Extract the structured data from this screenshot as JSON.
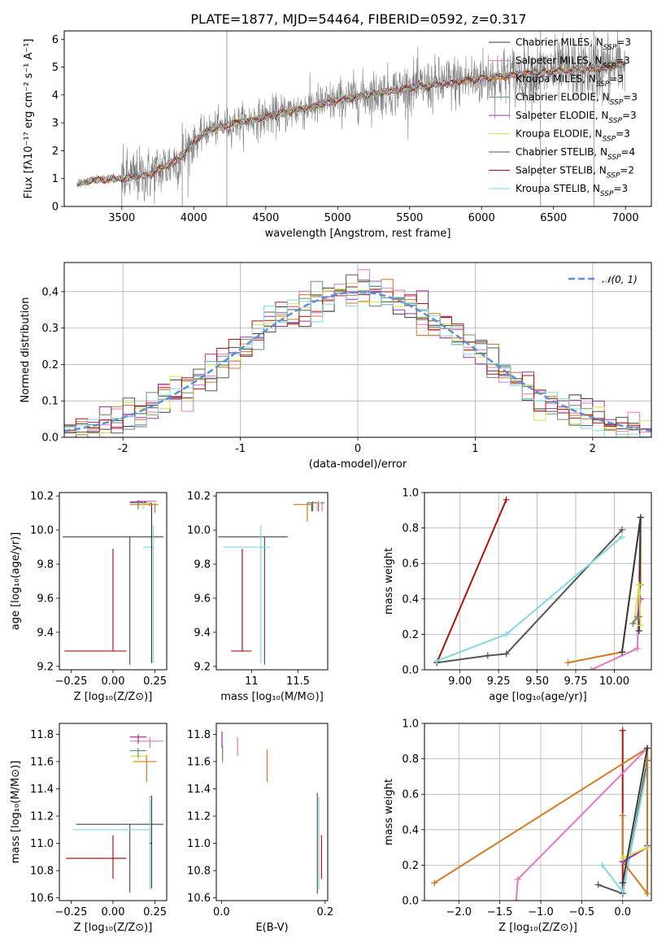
{
  "figure": {
    "title": "PLATE=1877, MJD=54464, FIBERID=0592, z=0.317"
  },
  "models": [
    {
      "name": "Chabrier MILES",
      "color": "#3a3a3a",
      "nssp": "3"
    },
    {
      "name": "Salpeter MILES",
      "color": "#e377c2",
      "nssp": "3"
    },
    {
      "name": "Kroupa MILES",
      "color": "#d2791f",
      "nssp": "3"
    },
    {
      "name": "Chabrier ELODIE",
      "color": "#6c8f6c",
      "nssp": "3"
    },
    {
      "name": "Salpeter ELODIE",
      "color": "#9b30b0",
      "nssp": "3"
    },
    {
      "name": "Kroupa ELODIE",
      "color": "#d9e04a",
      "nssp": "3"
    },
    {
      "name": "Chabrier STELIB",
      "color": "#555555",
      "nssp": "4"
    },
    {
      "name": "Salpeter STELIB",
      "color": "#b01010",
      "nssp": "2"
    },
    {
      "name": "Kroupa STELIB",
      "color": "#7fd8e0",
      "nssp": "3"
    }
  ],
  "chart_data": [
    {
      "id": "spectrum",
      "type": "line",
      "xlabel": "wavelength [Angstrom, rest frame]",
      "ylabel": "Flux [fλ10⁻¹⁷ erg cm⁻² s⁻¹ A⁻¹]",
      "xlim": [
        3100,
        7180
      ],
      "ylim": [
        0,
        6.3
      ],
      "xticks": [
        3500,
        4000,
        4500,
        5000,
        5500,
        6000,
        6500,
        7000
      ],
      "yticks": [
        0,
        1,
        2,
        3,
        4,
        5,
        6
      ],
      "data_range": [
        3190,
        7000
      ],
      "continuum": {
        "x": [
          3200,
          3300,
          3500,
          3700,
          3900,
          4000,
          4100,
          4300,
          4500,
          4700,
          5000,
          5200,
          5500,
          5800,
          6000,
          6200,
          6500,
          6800,
          7000
        ],
        "y": [
          0.8,
          0.95,
          1.0,
          1.15,
          1.7,
          2.3,
          2.75,
          3.0,
          3.2,
          3.45,
          3.8,
          4.0,
          4.25,
          4.45,
          4.6,
          4.7,
          4.85,
          4.95,
          5.1
        ]
      },
      "noise_spikes": [
        [
          4230,
          0,
          6.3
        ],
        [
          3920,
          0,
          3.0
        ],
        [
          6410,
          0,
          6.3
        ],
        [
          6780,
          0,
          6.3
        ],
        [
          3500,
          0,
          1.5
        ]
      ]
    },
    {
      "id": "residual-histogram",
      "type": "histogram",
      "xlabel": "(data-model)/error",
      "ylabel": "Normed distribution",
      "xlim": [
        -2.5,
        2.5
      ],
      "ylim": [
        0,
        0.48
      ],
      "xticks": [
        -2,
        -1,
        0,
        1,
        2
      ],
      "yticks": [
        0.0,
        0.1,
        0.2,
        0.3,
        0.4
      ],
      "bin_width": 0.1,
      "reference": {
        "name": "𝒩(0, 1)",
        "color": "#5b8fd9",
        "mean": 0,
        "sigma": 1
      }
    },
    {
      "id": "age-vs-Z",
      "type": "errorbar",
      "xlabel": "Z [log₁₀(Z/Z⊙)]",
      "ylabel": "age  [log₁₀(age/yr)]",
      "xlim": [
        -0.32,
        0.32
      ],
      "ylim": [
        9.18,
        10.22
      ],
      "xticks": [
        -0.25,
        0.0,
        0.25
      ],
      "xticklabels": [
        "−0.25",
        "0.00",
        "0.25"
      ],
      "yticks": [
        9.2,
        9.4,
        9.6,
        9.8,
        10.0,
        10.2
      ],
      "points": [
        {
          "model": 6,
          "x": 0.1,
          "xerr": [
            0.4,
            0.2
          ],
          "y": 9.96,
          "yerr": [
            0.75,
            0.0
          ]
        },
        {
          "model": 8,
          "x": 0.24,
          "xerr": [
            0.06,
            0.0
          ],
          "y": 9.9,
          "yerr": [
            0.68,
            0.13
          ]
        },
        {
          "model": 7,
          "x": 0.0,
          "xerr": [
            0.29,
            0.08
          ],
          "y": 9.29,
          "yerr": [
            0.0,
            0.6
          ]
        },
        {
          "model": 0,
          "x": 0.23,
          "xerr": [
            0.06,
            0.0
          ],
          "y": 10.16,
          "yerr": [
            0.94,
            0.0
          ]
        },
        {
          "model": 1,
          "x": 0.22,
          "xerr": [
            0.08,
            0.04
          ],
          "y": 10.17,
          "yerr": [
            0.03,
            0.0
          ]
        },
        {
          "model": 2,
          "x": 0.25,
          "xerr": [
            0.15,
            0.02
          ],
          "y": 10.15,
          "yerr": [
            0.05,
            0.01
          ]
        },
        {
          "model": 4,
          "x": 0.15,
          "xerr": [
            0.05,
            0.05
          ],
          "y": 10.165,
          "yerr": [
            0.03,
            0.01
          ]
        },
        {
          "model": 5,
          "x": 0.18,
          "xerr": [
            0.08,
            0.05
          ],
          "y": 10.16,
          "yerr": [
            0.04,
            0.01
          ]
        },
        {
          "model": 3,
          "x": 0.15,
          "xerr": [
            0.05,
            0.05
          ],
          "y": 10.16,
          "yerr": [
            0.04,
            0.01
          ]
        }
      ]
    },
    {
      "id": "age-vs-mass",
      "type": "errorbar",
      "xlabel": "mass [log₁₀(M/M⊙)]",
      "ylabel": "",
      "xlim": [
        10.62,
        11.82
      ],
      "ylim": [
        9.18,
        10.22
      ],
      "xticks": [
        11.0,
        11.5
      ],
      "yticks": [
        9.2,
        9.4,
        9.6,
        9.8,
        10.0,
        10.2
      ],
      "points": [
        {
          "model": 6,
          "x": 11.14,
          "xerr": [
            0.5,
            0.25
          ],
          "y": 9.96,
          "yerr": [
            0.75,
            0.0
          ]
        },
        {
          "model": 8,
          "x": 11.1,
          "xerr": [
            0.4,
            0.1
          ],
          "y": 9.9,
          "yerr": [
            0.68,
            0.13
          ]
        },
        {
          "model": 7,
          "x": 10.9,
          "xerr": [
            0.12,
            0.1
          ],
          "y": 9.29,
          "yerr": [
            0.0,
            0.6
          ]
        },
        {
          "model": 0,
          "x": 11.65,
          "xerr": [
            0.05,
            0.03
          ],
          "y": 10.16,
          "yerr": [
            0.05,
            0.0
          ]
        },
        {
          "model": 1,
          "x": 11.76,
          "xerr": [
            0.05,
            0.03
          ],
          "y": 10.16,
          "yerr": [
            0.05,
            0.0
          ]
        },
        {
          "model": 2,
          "x": 11.6,
          "xerr": [
            0.15,
            0.05
          ],
          "y": 10.15,
          "yerr": [
            0.1,
            0.01
          ]
        },
        {
          "model": 4,
          "x": 11.72,
          "xerr": [
            0.05,
            0.05
          ],
          "y": 10.16,
          "yerr": [
            0.05,
            0.01
          ]
        },
        {
          "model": 5,
          "x": 11.7,
          "xerr": [
            0.05,
            0.05
          ],
          "y": 10.16,
          "yerr": [
            0.05,
            0.01
          ]
        },
        {
          "model": 3,
          "x": 11.66,
          "xerr": [
            0.05,
            0.05
          ],
          "y": 10.16,
          "yerr": [
            0.05,
            0.01
          ]
        }
      ]
    },
    {
      "id": "mass-weight-vs-age",
      "type": "line",
      "xlabel": "age  [log₁₀(age/yr)]",
      "ylabel": "mass weight",
      "xlim": [
        8.77,
        10.24
      ],
      "ylim": [
        0,
        1.0
      ],
      "xticks": [
        9.0,
        9.25,
        9.5,
        9.75,
        10.0
      ],
      "xticklabels": [
        "9.00",
        "9.25",
        "9.50",
        "9.75",
        "10.00"
      ],
      "yticks": [
        0.0,
        0.2,
        0.4,
        0.6,
        0.8,
        1.0
      ],
      "series": [
        {
          "model": 7,
          "x": [
            8.85,
            9.3
          ],
          "y": [
            0.04,
            0.96
          ]
        },
        {
          "model": 6,
          "x": [
            8.85,
            9.18,
            9.3,
            10.05
          ],
          "y": [
            0.04,
            0.08,
            0.09,
            0.79
          ]
        },
        {
          "model": 8,
          "x": [
            8.85,
            9.3,
            10.05
          ],
          "y": [
            0.05,
            0.2,
            0.75
          ]
        },
        {
          "model": 2,
          "x": [
            9.7,
            10.05,
            10.17,
            10.17
          ],
          "y": [
            0.04,
            0.1,
            0.86,
            0.48
          ]
        },
        {
          "model": 1,
          "x": [
            9.85,
            10.15,
            10.17
          ],
          "y": [
            0.0,
            0.12,
            0.86
          ]
        },
        {
          "model": 0,
          "x": [
            10.05,
            10.17,
            10.16
          ],
          "y": [
            0.1,
            0.86,
            0.22
          ]
        },
        {
          "model": 4,
          "x": [
            10.15,
            10.17,
            10.16
          ],
          "y": [
            0.3,
            0.4,
            0.3
          ]
        },
        {
          "model": 5,
          "x": [
            10.13,
            10.16,
            10.17
          ],
          "y": [
            0.27,
            0.48,
            0.25
          ]
        },
        {
          "model": 3,
          "x": [
            10.12,
            10.15
          ],
          "y": [
            0.26,
            0.3
          ]
        }
      ]
    },
    {
      "id": "mass-vs-Z",
      "type": "errorbar",
      "xlabel": "Z [log₁₀(Z/Z⊙)]",
      "ylabel": "mass [log₁₀(M/M⊙)]",
      "xlim": [
        -0.32,
        0.32
      ],
      "ylim": [
        10.58,
        11.88
      ],
      "xticks": [
        -0.25,
        0.0,
        0.25
      ],
      "xticklabels": [
        "−0.25",
        "0.00",
        "0.25"
      ],
      "yticks": [
        10.6,
        10.8,
        11.0,
        11.2,
        11.4,
        11.6,
        11.8
      ],
      "points": [
        {
          "model": 6,
          "x": 0.1,
          "xerr": [
            0.32,
            0.2
          ],
          "y": 11.14,
          "yerr": [
            0.5,
            0.0
          ]
        },
        {
          "model": 8,
          "x": 0.22,
          "xerr": [
            0.46,
            0.0
          ],
          "y": 11.1,
          "yerr": [
            0.44,
            0.25
          ]
        },
        {
          "model": 7,
          "x": 0.0,
          "xerr": [
            0.28,
            0.08
          ],
          "y": 10.89,
          "yerr": [
            0.15,
            0.17
          ]
        },
        {
          "model": 0,
          "x": 0.23,
          "xerr": [
            0.01,
            0.0
          ],
          "y": 11.0,
          "yerr": [
            0.33,
            0.35
          ]
        },
        {
          "model": 1,
          "x": 0.22,
          "xerr": [
            0.12,
            0.08
          ],
          "y": 11.75,
          "yerr": [
            0.05,
            0.03
          ]
        },
        {
          "model": 2,
          "x": 0.2,
          "xerr": [
            0.08,
            0.06
          ],
          "y": 11.6,
          "yerr": [
            0.15,
            0.05
          ]
        },
        {
          "model": 4,
          "x": 0.15,
          "xerr": [
            0.05,
            0.05
          ],
          "y": 11.78,
          "yerr": [
            0.05,
            0.02
          ]
        },
        {
          "model": 5,
          "x": 0.15,
          "xerr": [
            0.05,
            0.05
          ],
          "y": 11.64,
          "yerr": [
            0.05,
            0.02
          ]
        },
        {
          "model": 3,
          "x": 0.15,
          "xerr": [
            0.05,
            0.05
          ],
          "y": 11.68,
          "yerr": [
            0.05,
            0.02
          ]
        }
      ]
    },
    {
      "id": "mass-vs-EBV",
      "type": "errorbar",
      "xlabel": "E(B-V)",
      "ylabel": "",
      "xlim": [
        -0.01,
        0.205
      ],
      "ylim": [
        10.58,
        11.88
      ],
      "xticks": [
        0.0,
        0.2
      ],
      "xticklabels": [
        "0.0",
        "0.2"
      ],
      "yticks": [
        10.6,
        10.8,
        11.0,
        11.2,
        11.4,
        11.6,
        11.8
      ],
      "points": [
        {
          "model": 6,
          "x": 0.185,
          "xerr": [
            0,
            0
          ],
          "y": 11.0,
          "yerr": [
            0.37,
            0.37
          ]
        },
        {
          "model": 8,
          "x": 0.188,
          "xerr": [
            0,
            0
          ],
          "y": 11.0,
          "yerr": [
            0.34,
            0.34
          ]
        },
        {
          "model": 7,
          "x": 0.193,
          "xerr": [
            0,
            0
          ],
          "y": 10.9,
          "yerr": [
            0.16,
            0.16
          ]
        },
        {
          "model": 2,
          "x": 0.088,
          "xerr": [
            0,
            0
          ],
          "y": 11.57,
          "yerr": [
            0.12,
            0.12
          ]
        },
        {
          "model": 1,
          "x": 0.031,
          "xerr": [
            0,
            0
          ],
          "y": 11.71,
          "yerr": [
            0.07,
            0.07
          ]
        },
        {
          "model": 4,
          "x": 0.001,
          "xerr": [
            0,
            0
          ],
          "y": 11.76,
          "yerr": [
            0.06,
            0.06
          ]
        },
        {
          "model": 5,
          "x": 0.002,
          "xerr": [
            0,
            0
          ],
          "y": 11.64,
          "yerr": [
            0.06,
            0.06
          ]
        },
        {
          "model": 3,
          "x": 0.002,
          "xerr": [
            0,
            0
          ],
          "y": 11.66,
          "yerr": [
            0.06,
            0.06
          ]
        }
      ]
    },
    {
      "id": "mass-weight-vs-Z",
      "type": "line",
      "xlabel": "Z [log₁₀(Z/Z⊙)]",
      "ylabel": "mass weight",
      "xlim": [
        -2.42,
        0.35
      ],
      "ylim": [
        0,
        1.0
      ],
      "xticks": [
        -2.0,
        -1.5,
        -1.0,
        -0.5,
        0.0
      ],
      "xticklabels": [
        "−2.0",
        "−1.5",
        "−1.0",
        "−0.5",
        "0.0"
      ],
      "yticks": [
        0.0,
        0.2,
        0.4,
        0.6,
        0.8,
        1.0
      ],
      "series": [
        {
          "model": 7,
          "x": [
            0.0,
            0.0
          ],
          "y": [
            0.04,
            0.96
          ]
        },
        {
          "model": 6,
          "x": [
            -0.3,
            0.0,
            0.3
          ],
          "y": [
            0.09,
            0.04,
            0.79
          ]
        },
        {
          "model": 8,
          "x": [
            -0.25,
            0.0,
            0.3
          ],
          "y": [
            0.2,
            0.05,
            0.75
          ]
        },
        {
          "model": 2,
          "x": [
            -2.3,
            0.3,
            0.3,
            0.0,
            0.0
          ],
          "y": [
            0.1,
            0.86,
            0.04,
            0.22,
            0.48
          ]
        },
        {
          "model": 1,
          "x": [
            -1.3,
            -1.28,
            0.3
          ],
          "y": [
            0.0,
            0.12,
            0.86
          ]
        },
        {
          "model": 4,
          "x": [
            0.0,
            0.3,
            0.3
          ],
          "y": [
            0.22,
            0.3,
            0.31
          ]
        },
        {
          "model": 5,
          "x": [
            0.0,
            0.3
          ],
          "y": [
            0.24,
            0.3
          ]
        },
        {
          "model": 0,
          "x": [
            0.0,
            0.3
          ],
          "y": [
            0.1,
            0.86
          ]
        }
      ]
    }
  ]
}
